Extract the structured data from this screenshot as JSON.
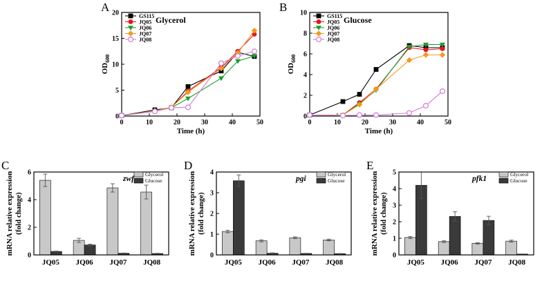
{
  "chart_data": [
    {
      "panel": "A",
      "type": "line",
      "title": "Glycerol",
      "xlabel": "Time (h)",
      "ylabel_main": "OD",
      "ylabel_sub": "600",
      "xlim": [
        0,
        50
      ],
      "ylim": [
        0,
        20
      ],
      "xticks": [
        0,
        10,
        20,
        30,
        40,
        50
      ],
      "yticks": [
        0,
        5,
        10,
        15,
        20
      ],
      "legend_position": "top-left",
      "series": [
        {
          "name": "GS115",
          "color": "#000000",
          "marker": "square",
          "x": [
            0,
            12,
            18,
            24,
            36,
            42,
            48
          ],
          "y": [
            0.1,
            1.2,
            1.6,
            5.7,
            8.7,
            12.3,
            11.5
          ]
        },
        {
          "name": "JQ05",
          "color": "#e8141c",
          "marker": "circle",
          "x": [
            0,
            12,
            18,
            24,
            36,
            42,
            48
          ],
          "y": [
            0.1,
            1.0,
            1.7,
            4.8,
            9.4,
            12.5,
            15.8
          ]
        },
        {
          "name": "JQ06",
          "color": "#1a9e2e",
          "marker": "triangle-down",
          "x": [
            0,
            12,
            18,
            24,
            36,
            42,
            48
          ],
          "y": [
            0.1,
            0.9,
            1.6,
            3.4,
            7.3,
            10.6,
            11.6
          ]
        },
        {
          "name": "JQ07",
          "color": "#f29a1f",
          "marker": "diamond",
          "x": [
            0,
            12,
            18,
            24,
            36,
            42,
            48
          ],
          "y": [
            0.1,
            1.0,
            1.7,
            4.6,
            9.2,
            12.2,
            16.5
          ]
        },
        {
          "name": "JQ08",
          "color": "#d27ad6",
          "marker": "open-circle",
          "x": [
            0,
            12,
            18,
            24,
            36,
            42,
            48
          ],
          "y": [
            0.1,
            0.9,
            1.6,
            1.7,
            10.2,
            11.6,
            12.5
          ]
        }
      ]
    },
    {
      "panel": "B",
      "type": "line",
      "title": "Glucose",
      "xlabel": "Time (h)",
      "ylabel_main": "OD",
      "ylabel_sub": "600",
      "xlim": [
        0,
        50
      ],
      "ylim": [
        0,
        10
      ],
      "xticks": [
        0,
        10,
        20,
        30,
        40,
        50
      ],
      "yticks": [
        0,
        2,
        4,
        6,
        8,
        10
      ],
      "legend_position": "top-left",
      "series": [
        {
          "name": "GS115",
          "color": "#000000",
          "marker": "square",
          "x": [
            0,
            12,
            18,
            24,
            36,
            42,
            48
          ],
          "y": [
            0.1,
            1.4,
            2.1,
            4.5,
            6.8,
            6.6,
            6.6
          ]
        },
        {
          "name": "JQ05",
          "color": "#e8141c",
          "marker": "circle",
          "x": [
            0,
            12,
            18,
            24,
            36,
            42,
            48
          ],
          "y": [
            0.1,
            0.1,
            1.3,
            2.6,
            6.6,
            6.4,
            6.5
          ]
        },
        {
          "name": "JQ06",
          "color": "#1a9e2e",
          "marker": "triangle-down",
          "x": [
            0,
            12,
            18,
            24,
            36,
            42,
            48
          ],
          "y": [
            0.1,
            0.1,
            1.2,
            2.5,
            6.7,
            6.9,
            6.9
          ]
        },
        {
          "name": "JQ07",
          "color": "#f29a1f",
          "marker": "diamond",
          "x": [
            0,
            12,
            18,
            24,
            36,
            42,
            48
          ],
          "y": [
            0.1,
            0.1,
            1.1,
            2.6,
            5.4,
            5.9,
            5.9
          ]
        },
        {
          "name": "JQ08",
          "color": "#d27ad6",
          "marker": "open-circle",
          "x": [
            0,
            12,
            18,
            24,
            36,
            42,
            48
          ],
          "y": [
            0.1,
            0.05,
            0.1,
            0.1,
            0.3,
            1.0,
            2.4
          ]
        }
      ]
    },
    {
      "panel": "C",
      "type": "bar",
      "gene": "zwf",
      "ylabel_line1": "mRNA relative expression",
      "ylabel_line2": "(fold change)",
      "categories": [
        "JQ05",
        "JQ06",
        "JQ07",
        "JQ08"
      ],
      "ylim": [
        0,
        6
      ],
      "yticks": [
        0,
        2,
        4,
        6
      ],
      "legend_position": "top-right",
      "series": [
        {
          "name": "Glycerol",
          "color": "#c8c8c8",
          "values": [
            5.4,
            1.05,
            4.85,
            4.55
          ],
          "errors": [
            0.45,
            0.15,
            0.3,
            0.5
          ]
        },
        {
          "name": "Glucose",
          "color": "#3a3a3a",
          "values": [
            0.25,
            0.72,
            0.12,
            0.1
          ],
          "errors": [
            0.03,
            0.06,
            0.02,
            0.02
          ]
        }
      ]
    },
    {
      "panel": "D",
      "type": "bar",
      "gene": "pgi",
      "ylabel_line1": "mRNA relative expression",
      "ylabel_line2": "(fold change)",
      "categories": [
        "JQ05",
        "JQ06",
        "JQ07",
        "JQ08"
      ],
      "ylim": [
        0,
        4
      ],
      "yticks": [
        0,
        1,
        2,
        3,
        4
      ],
      "legend_position": "top-right",
      "series": [
        {
          "name": "Glycerol",
          "color": "#c8c8c8",
          "values": [
            1.13,
            0.68,
            0.83,
            0.72
          ],
          "errors": [
            0.06,
            0.05,
            0.04,
            0.04
          ]
        },
        {
          "name": "Glucose",
          "color": "#3a3a3a",
          "values": [
            3.58,
            0.08,
            0.07,
            0.06
          ],
          "errors": [
            0.28,
            0.02,
            0.01,
            0.01
          ]
        }
      ]
    },
    {
      "panel": "E",
      "type": "bar",
      "gene": "pfk1",
      "ylabel_line1": "mRNA relative expression",
      "ylabel_line2": "(fold change)",
      "categories": [
        "JQ05",
        "JQ06",
        "JQ07",
        "JQ08"
      ],
      "ylim": [
        0,
        5
      ],
      "yticks": [
        0,
        1,
        2,
        3,
        4,
        5
      ],
      "legend_position": "top-right",
      "series": [
        {
          "name": "Glycerol",
          "color": "#c8c8c8",
          "values": [
            1.05,
            0.8,
            0.7,
            0.83
          ],
          "errors": [
            0.06,
            0.05,
            0.04,
            0.06
          ]
        },
        {
          "name": "Glucose",
          "color": "#3a3a3a",
          "values": [
            4.2,
            2.32,
            2.08,
            0.05
          ],
          "errors": [
            0.8,
            0.28,
            0.25,
            0.01
          ]
        }
      ]
    }
  ]
}
